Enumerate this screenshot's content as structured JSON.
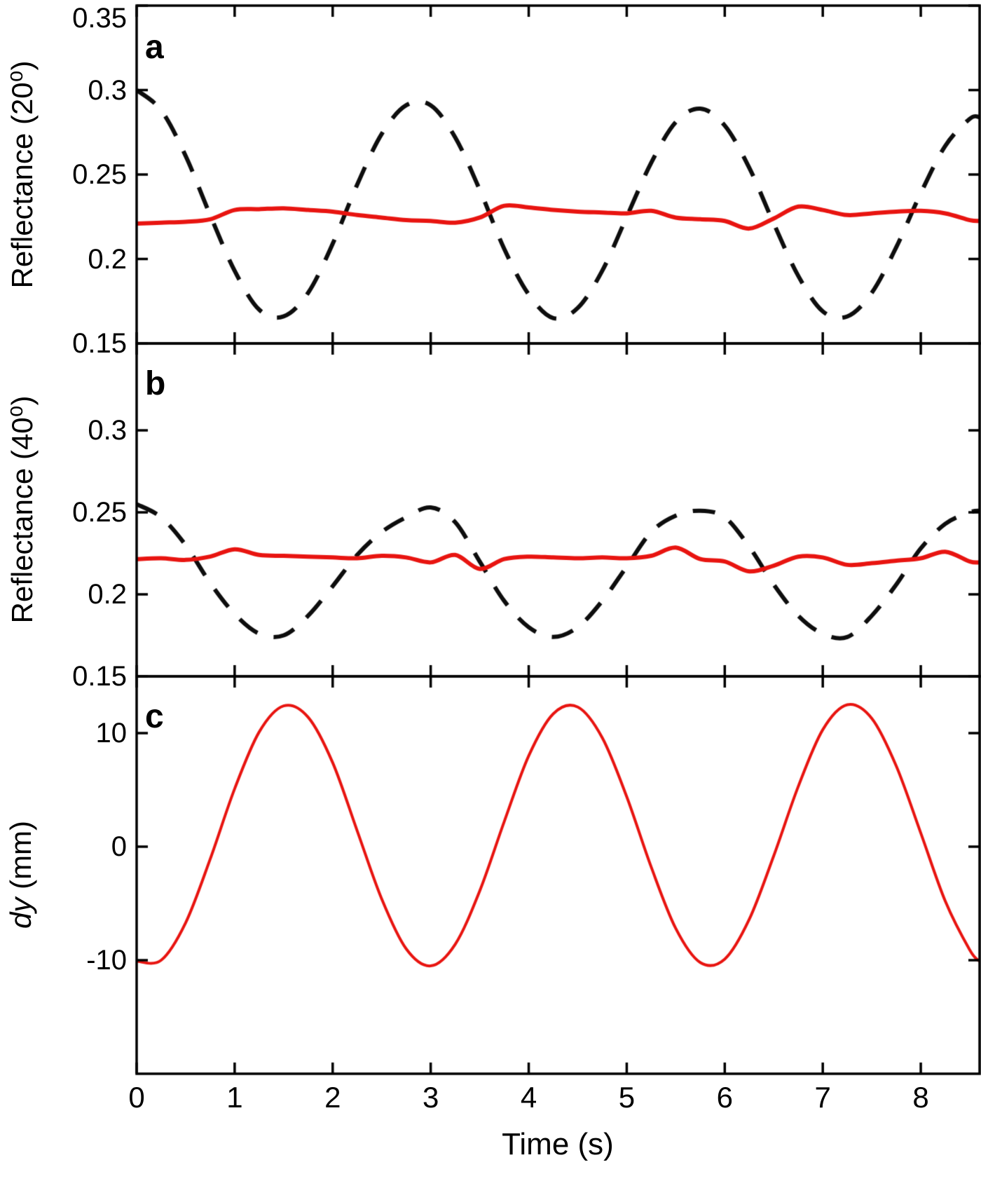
{
  "figure": {
    "xlabel": "Time (s)",
    "xlim": [
      0,
      8.6
    ],
    "x_ticks": [
      0,
      1,
      2,
      3,
      4,
      5,
      6,
      7,
      8
    ],
    "background": "#ffffff",
    "axis_color": "#000000"
  },
  "chart_data": [
    {
      "type": "line",
      "panel_label": "a",
      "ylabel_italic": "",
      "ylabel_rest": "Reflectance (20⁰)",
      "ylim": [
        0.15,
        0.35
      ],
      "y_ticks": [
        0.15,
        0.2,
        0.25,
        0.3,
        0.35
      ],
      "x": [
        0,
        0.25,
        0.5,
        0.75,
        1,
        1.25,
        1.5,
        1.75,
        2,
        2.25,
        2.5,
        2.75,
        3,
        3.25,
        3.5,
        3.75,
        4,
        4.25,
        4.5,
        4.75,
        5,
        5.25,
        5.5,
        5.75,
        6,
        6.25,
        6.5,
        6.75,
        7,
        7.25,
        7.5,
        7.75,
        8,
        8.25,
        8.5,
        8.6
      ],
      "series": [
        {
          "name": "uncorrected-black-dashed",
          "style": "dashed",
          "color": "#0d0d0d",
          "line_width": 6,
          "values": [
            0.3,
            0.288,
            0.261,
            0.226,
            0.193,
            0.17,
            0.166,
            0.18,
            0.209,
            0.244,
            0.274,
            0.291,
            0.291,
            0.272,
            0.241,
            0.206,
            0.179,
            0.165,
            0.171,
            0.193,
            0.225,
            0.257,
            0.281,
            0.289,
            0.279,
            0.254,
            0.221,
            0.19,
            0.169,
            0.166,
            0.18,
            0.207,
            0.239,
            0.267,
            0.283,
            0.284
          ]
        },
        {
          "name": "corrected-red-solid",
          "style": "solid",
          "color": "#e81410",
          "line_width": 6,
          "values": [
            0.221,
            0.2215,
            0.222,
            0.2235,
            0.229,
            0.2295,
            0.23,
            0.229,
            0.228,
            0.226,
            0.2245,
            0.223,
            0.2225,
            0.2215,
            0.2245,
            0.2315,
            0.2305,
            0.229,
            0.228,
            0.2275,
            0.227,
            0.2285,
            0.2245,
            0.2235,
            0.2225,
            0.218,
            0.224,
            0.231,
            0.229,
            0.226,
            0.227,
            0.228,
            0.2285,
            0.227,
            0.223,
            0.2225
          ]
        }
      ]
    },
    {
      "type": "line",
      "panel_label": "b",
      "ylabel_italic": "",
      "ylabel_rest": "Reflectance (40⁰)",
      "ylim": [
        0.15,
        0.353
      ],
      "y_ticks": [
        0.15,
        0.2,
        0.25,
        0.3
      ],
      "x": [
        0,
        0.25,
        0.5,
        0.75,
        1,
        1.25,
        1.5,
        1.75,
        2,
        2.25,
        2.5,
        2.75,
        3,
        3.25,
        3.5,
        3.75,
        4,
        4.25,
        4.5,
        4.75,
        5,
        5.25,
        5.5,
        5.75,
        6,
        6.25,
        6.5,
        6.75,
        7,
        7.25,
        7.5,
        7.75,
        8,
        8.25,
        8.5,
        8.6
      ],
      "series": [
        {
          "name": "uncorrected-black-dashed",
          "style": "dashed",
          "color": "#0d0d0d",
          "line_width": 6,
          "values": [
            0.255,
            0.247,
            0.23,
            0.207,
            0.188,
            0.176,
            0.175,
            0.187,
            0.205,
            0.224,
            0.238,
            0.247,
            0.253,
            0.244,
            0.22,
            0.196,
            0.18,
            0.174,
            0.18,
            0.196,
            0.217,
            0.238,
            0.248,
            0.251,
            0.247,
            0.229,
            0.206,
            0.187,
            0.176,
            0.174,
            0.187,
            0.206,
            0.228,
            0.243,
            0.25,
            0.251
          ]
        },
        {
          "name": "corrected-red-solid",
          "style": "solid",
          "color": "#e81410",
          "line_width": 6,
          "values": [
            0.2215,
            0.222,
            0.221,
            0.223,
            0.2275,
            0.224,
            0.2235,
            0.223,
            0.2225,
            0.222,
            0.2235,
            0.2225,
            0.2195,
            0.224,
            0.2155,
            0.2215,
            0.223,
            0.2225,
            0.222,
            0.2225,
            0.222,
            0.2235,
            0.2285,
            0.2215,
            0.22,
            0.214,
            0.2175,
            0.223,
            0.2225,
            0.218,
            0.219,
            0.2205,
            0.222,
            0.226,
            0.22,
            0.2195
          ]
        }
      ]
    },
    {
      "type": "line",
      "panel_label": "c",
      "ylabel_italic": "dy",
      "ylabel_rest": " (mm)",
      "ylim": [
        -20,
        15
      ],
      "y_ticks": [
        -10,
        0,
        10
      ],
      "x": [
        0,
        0.25,
        0.5,
        0.75,
        1,
        1.25,
        1.5,
        1.75,
        2,
        2.25,
        2.5,
        2.75,
        3,
        3.25,
        3.5,
        3.75,
        4,
        4.25,
        4.5,
        4.75,
        5,
        5.25,
        5.5,
        5.75,
        6,
        6.25,
        6.5,
        6.75,
        7,
        7.25,
        7.5,
        7.75,
        8,
        8.25,
        8.5,
        8.6
      ],
      "series": [
        {
          "name": "vertical-displacement-red",
          "style": "solid",
          "color": "#e81410",
          "line_width": 4,
          "values": [
            -10.1,
            -10.0,
            -6.7,
            -1.1,
            5.1,
            10.1,
            12.4,
            11.4,
            7.4,
            1.4,
            -4.6,
            -9.0,
            -10.5,
            -8.6,
            -3.9,
            2.2,
            8.0,
            11.7,
            12.3,
            9.6,
            4.4,
            -1.8,
            -7.2,
            -10.2,
            -9.9,
            -6.4,
            -0.8,
            5.3,
            10.3,
            12.5,
            11.3,
            7.1,
            1.2,
            -4.8,
            -9.1,
            -10.1
          ]
        }
      ]
    }
  ]
}
